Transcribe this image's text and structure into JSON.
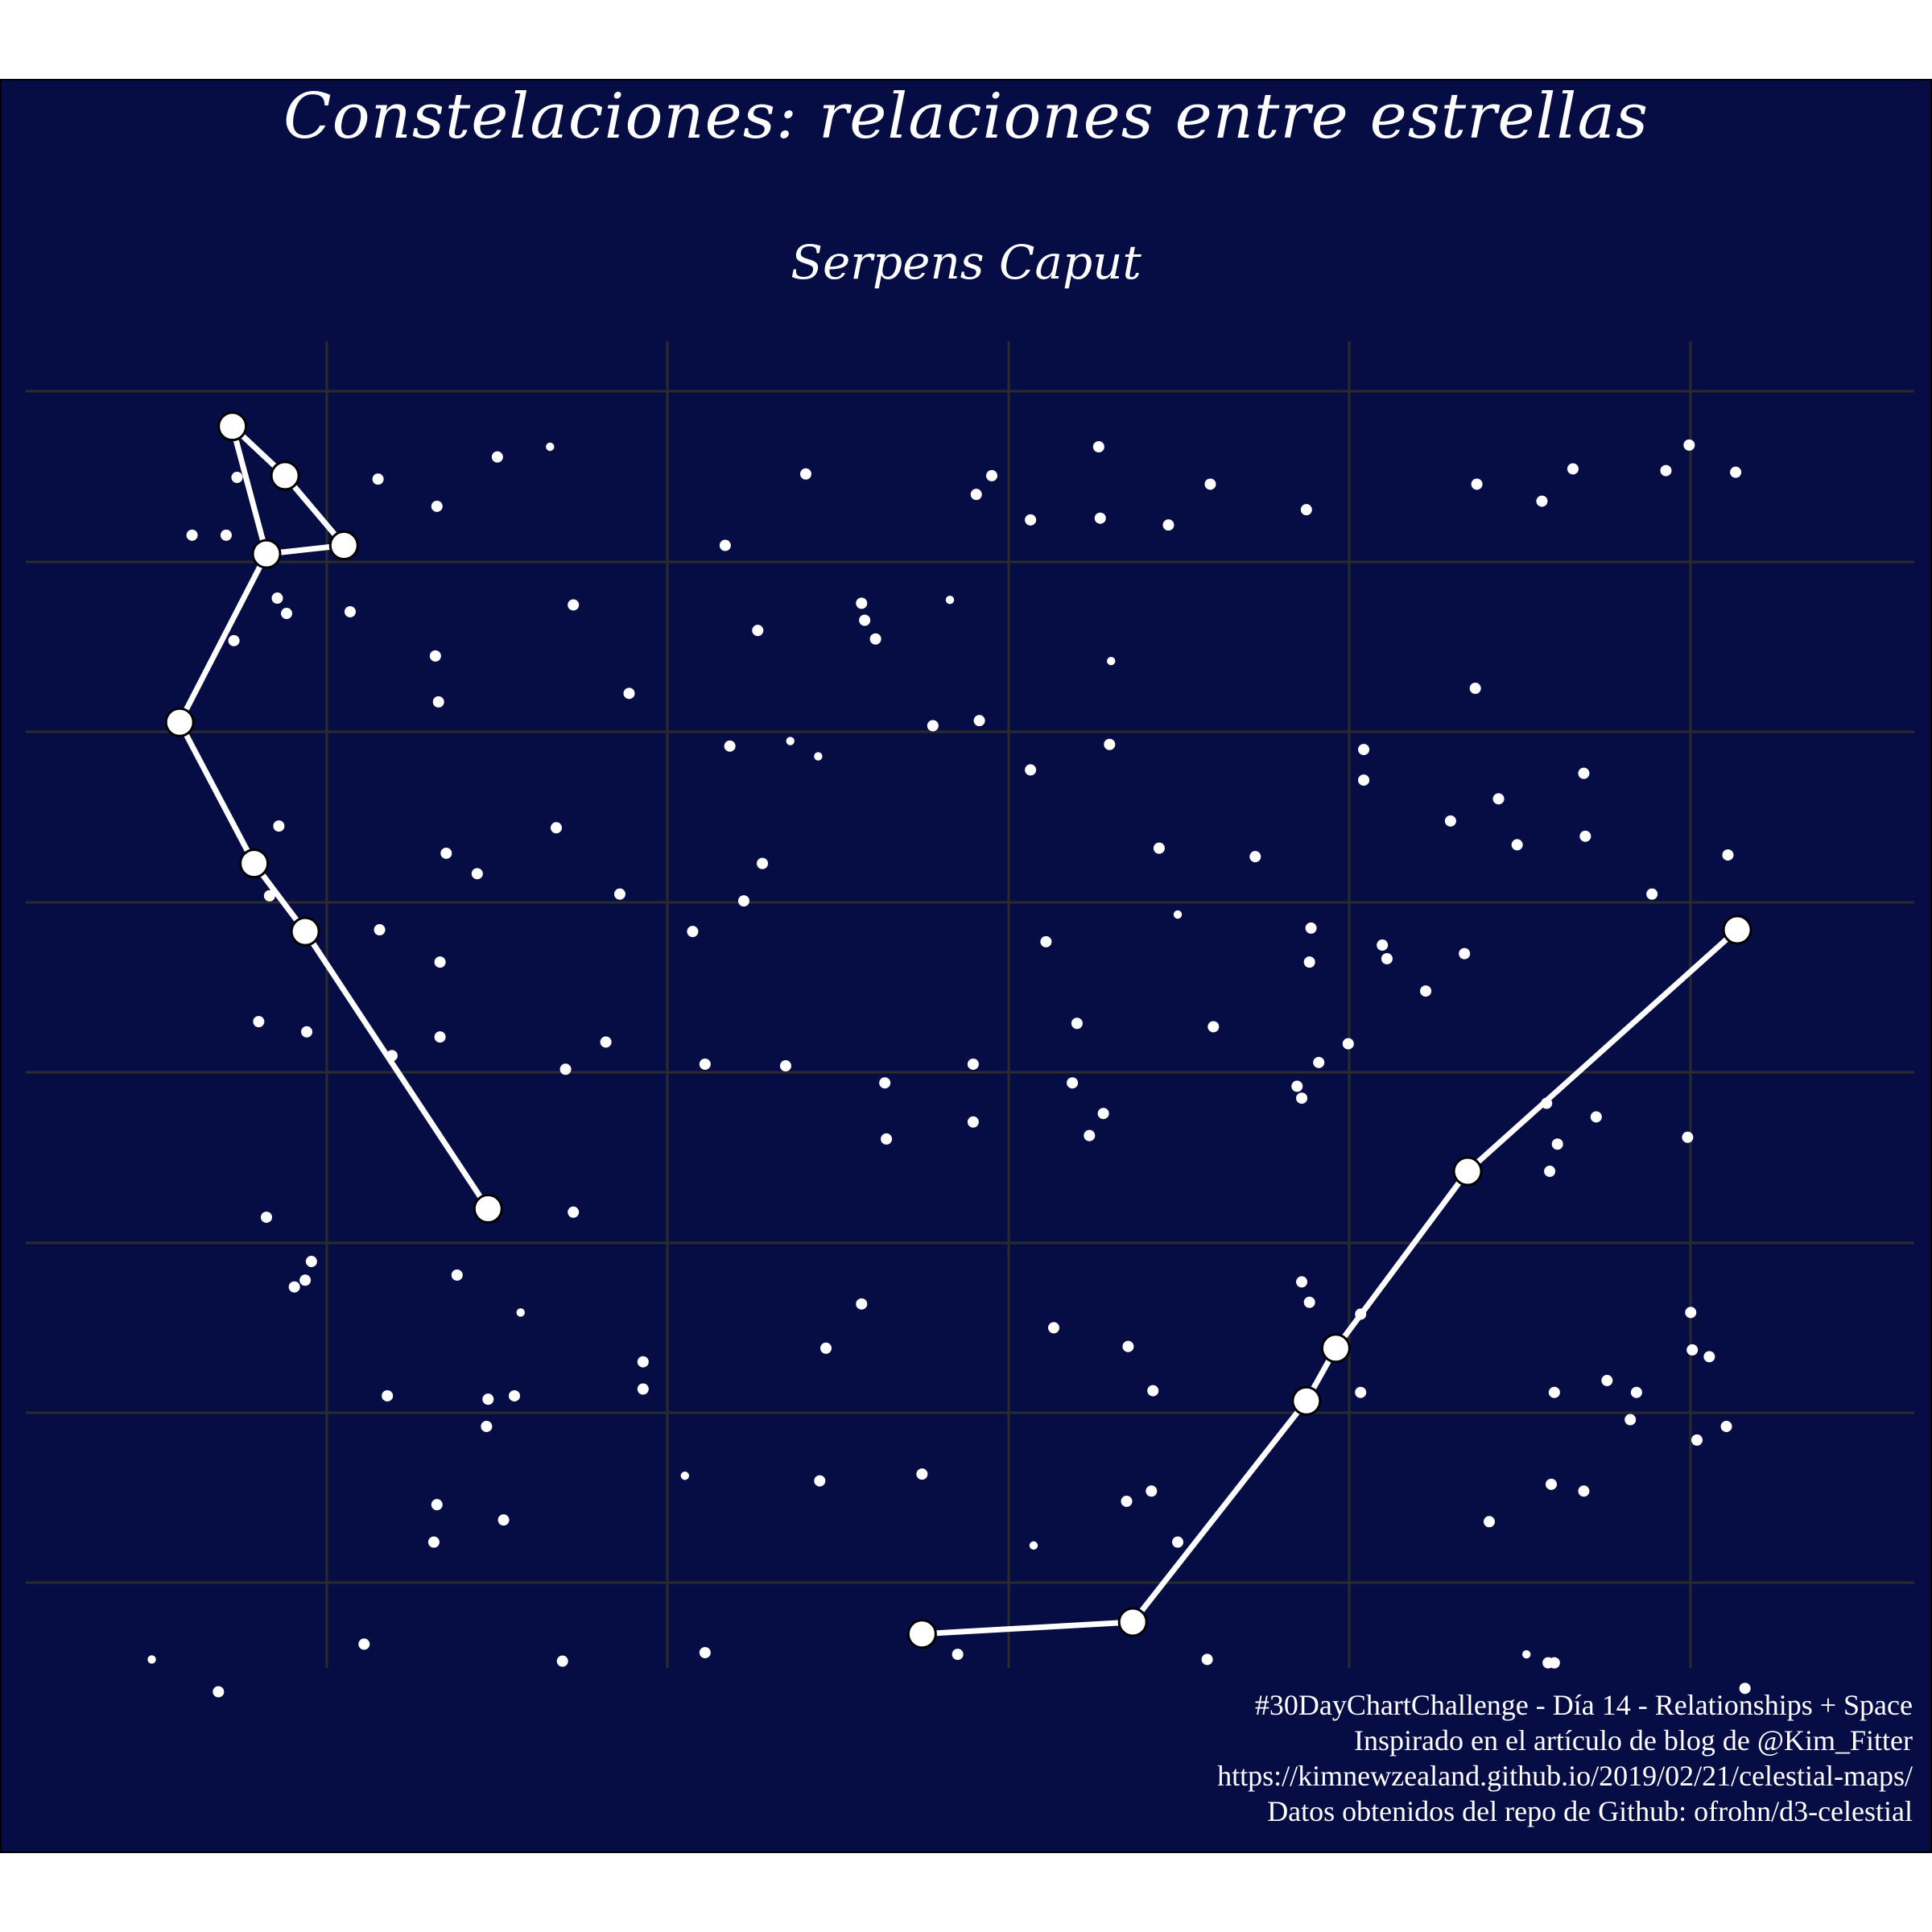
{
  "title": "Constelaciones: relaciones entre estrellas",
  "subtitle": "Serpens Caput",
  "caption": [
    "#30DayChartChallenge - Día 14 - Relationships + Space",
    "Inspirado en el artículo de blog de @Kim_Fitter",
    "https://kimnewzealand.github.io/2019/02/21/celestial-maps/",
    "Datos obtenidos del repo de Github: ofrohn/d3-celestial"
  ],
  "colors": {
    "background": "#060d44",
    "grid": "#2b2b2b",
    "stars": "#ffffff",
    "constellation_line": "#ffffff",
    "node_outline": "#000000"
  },
  "chart_data": {
    "type": "scatter",
    "grid": true,
    "axes_labels_shown": false,
    "xlim": [
      0,
      11.1
    ],
    "ylim": [
      0,
      7.8
    ],
    "constellation_segments": [
      [
        [
          0.85,
          7.3
        ],
        [
          1.19,
          7.01
        ],
        [
          1.57,
          6.6
        ],
        [
          1.07,
          6.55
        ],
        [
          0.85,
          7.3
        ]
      ],
      [
        [
          1.07,
          6.55
        ],
        [
          0.51,
          5.56
        ],
        [
          0.99,
          4.73
        ],
        [
          1.32,
          4.33
        ],
        [
          2.5,
          2.7
        ]
      ],
      [
        [
          5.3,
          0.2
        ],
        [
          6.66,
          0.27
        ],
        [
          7.78,
          1.57
        ],
        [
          7.97,
          1.88
        ],
        [
          8.82,
          2.92
        ],
        [
          10.56,
          4.34
        ]
      ]
    ],
    "background_stars": [
      [
        0.88,
        7.0,
        0.8
      ],
      [
        0.59,
        6.66,
        0.8
      ],
      [
        0.81,
        6.66,
        0.8
      ],
      [
        1.14,
        6.29,
        0.8
      ],
      [
        1.2,
        6.2,
        0.8
      ],
      [
        0.86,
        6.04,
        0.8
      ],
      [
        1.61,
        6.21,
        0.8
      ],
      [
        1.79,
        6.99,
        0.8
      ],
      [
        2.17,
        6.83,
        0.8
      ],
      [
        2.56,
        7.12,
        0.8
      ],
      [
        2.9,
        7.18,
        0.7
      ],
      [
        3.05,
        6.25,
        0.8
      ],
      [
        3.41,
        5.73,
        0.8
      ],
      [
        4.03,
        6.6,
        0.8
      ],
      [
        4.24,
        6.1,
        0.8
      ],
      [
        4.55,
        7.02,
        0.8
      ],
      [
        4.91,
        6.26,
        0.8
      ],
      [
        4.93,
        6.16,
        0.8
      ],
      [
        5.0,
        6.05,
        0.8
      ],
      [
        5.48,
        6.28,
        0.6
      ],
      [
        5.65,
        6.9,
        0.8
      ],
      [
        5.75,
        7.01,
        0.8
      ],
      [
        6.0,
        6.75,
        0.8
      ],
      [
        6.44,
        7.18,
        0.8
      ],
      [
        6.45,
        6.76,
        0.8
      ],
      [
        6.52,
        5.92,
        0.6
      ],
      [
        6.89,
        6.72,
        0.8
      ],
      [
        7.16,
        6.96,
        0.8
      ],
      [
        7.78,
        6.81,
        0.8
      ],
      [
        8.88,
        6.96,
        0.8
      ],
      [
        9.3,
        6.86,
        0.8
      ],
      [
        9.5,
        7.05,
        0.8
      ],
      [
        10.1,
        7.04,
        0.8
      ],
      [
        10.25,
        7.19,
        0.8
      ],
      [
        10.55,
        7.03,
        0.8
      ],
      [
        8.87,
        5.76,
        0.8
      ],
      [
        2.16,
        5.95,
        0.8
      ],
      [
        2.18,
        5.68,
        0.8
      ],
      [
        4.45,
        5.45,
        0.7
      ],
      [
        4.63,
        5.36,
        0.6
      ],
      [
        4.06,
        5.42,
        0.8
      ],
      [
        5.37,
        5.54,
        0.8
      ],
      [
        5.67,
        5.57,
        0.8
      ],
      [
        6.0,
        5.28,
        0.8
      ],
      [
        6.51,
        5.43,
        0.8
      ],
      [
        8.15,
        5.4,
        0.8
      ],
      [
        8.15,
        5.22,
        0.8
      ],
      [
        9.02,
        5.11,
        0.8
      ],
      [
        9.57,
        5.26,
        0.8
      ],
      [
        8.71,
        4.98,
        0.8
      ],
      [
        9.14,
        4.84,
        0.8
      ],
      [
        9.58,
        4.89,
        0.8
      ],
      [
        1.15,
        4.95,
        0.8
      ],
      [
        1.09,
        4.54,
        0.8
      ],
      [
        2.23,
        4.79,
        0.8
      ],
      [
        2.43,
        4.67,
        0.8
      ],
      [
        2.94,
        4.94,
        0.8
      ],
      [
        3.35,
        4.55,
        0.8
      ],
      [
        4.27,
        4.73,
        0.8
      ],
      [
        4.15,
        4.51,
        0.8
      ],
      [
        6.83,
        4.82,
        0.8
      ],
      [
        7.45,
        4.77,
        0.8
      ],
      [
        6.95,
        4.43,
        0.7
      ],
      [
        10.01,
        4.55,
        0.8
      ],
      [
        10.5,
        4.78,
        0.8
      ],
      [
        1.8,
        4.34,
        0.8
      ],
      [
        2.19,
        4.15,
        0.8
      ],
      [
        3.82,
        4.33,
        0.8
      ],
      [
        6.1,
        4.27,
        0.8
      ],
      [
        7.81,
        4.35,
        0.8
      ],
      [
        8.27,
        4.25,
        0.8
      ],
      [
        8.3,
        4.17,
        0.8
      ],
      [
        8.8,
        4.2,
        0.8
      ],
      [
        7.8,
        4.15,
        0.8
      ],
      [
        1.02,
        3.8,
        0.8
      ],
      [
        1.33,
        3.74,
        0.8
      ],
      [
        1.88,
        3.6,
        0.8
      ],
      [
        3.26,
        3.68,
        0.8
      ],
      [
        3.0,
        3.52,
        0.8
      ],
      [
        3.9,
        3.55,
        0.8
      ],
      [
        4.42,
        3.54,
        0.8
      ],
      [
        5.06,
        3.44,
        0.8
      ],
      [
        5.63,
        3.55,
        0.8
      ],
      [
        6.3,
        3.79,
        0.8
      ],
      [
        7.18,
        3.77,
        0.8
      ],
      [
        8.05,
        3.67,
        0.8
      ],
      [
        8.55,
        3.98,
        0.8
      ],
      [
        7.86,
        3.56,
        0.8
      ],
      [
        2.19,
        3.71,
        0.8
      ],
      [
        6.27,
        3.44,
        0.8
      ],
      [
        6.38,
        3.13,
        0.8
      ],
      [
        5.07,
        3.11,
        0.8
      ],
      [
        6.47,
        3.26,
        0.8
      ],
      [
        5.63,
        3.21,
        0.8
      ],
      [
        7.72,
        3.42,
        0.8
      ],
      [
        7.75,
        3.35,
        0.8
      ],
      [
        9.33,
        3.32,
        0.8
      ],
      [
        9.65,
        3.24,
        0.8
      ],
      [
        10.24,
        3.12,
        0.8
      ],
      [
        9.4,
        3.08,
        0.8
      ],
      [
        1.07,
        2.65,
        0.8
      ],
      [
        1.36,
        2.39,
        0.8
      ],
      [
        1.32,
        2.28,
        0.8
      ],
      [
        1.25,
        2.24,
        0.8
      ],
      [
        2.3,
        2.31,
        0.8
      ],
      [
        3.05,
        2.68,
        0.8
      ],
      [
        2.71,
        2.09,
        0.7
      ],
      [
        4.91,
        2.14,
        0.8
      ],
      [
        7.8,
        2.15,
        0.8
      ],
      [
        7.75,
        2.27,
        0.8
      ],
      [
        8.13,
        2.08,
        0.8
      ],
      [
        9.35,
        2.92,
        0.8
      ],
      [
        10.26,
        2.09,
        0.8
      ],
      [
        6.15,
        2.0,
        0.8
      ],
      [
        6.63,
        1.89,
        0.8
      ],
      [
        4.68,
        1.88,
        0.8
      ],
      [
        10.27,
        1.87,
        0.8
      ],
      [
        10.38,
        1.83,
        0.8
      ],
      [
        1.85,
        1.6,
        0.8
      ],
      [
        2.67,
        1.6,
        0.8
      ],
      [
        2.5,
        1.58,
        0.8
      ],
      [
        3.5,
        1.64,
        0.8
      ],
      [
        3.5,
        1.8,
        0.8
      ],
      [
        6.79,
        1.63,
        0.8
      ],
      [
        8.13,
        1.62,
        0.8
      ],
      [
        9.38,
        1.62,
        0.8
      ],
      [
        9.72,
        1.69,
        0.8
      ],
      [
        9.91,
        1.62,
        0.8
      ],
      [
        9.87,
        1.46,
        0.8
      ],
      [
        10.3,
        1.34,
        0.8
      ],
      [
        10.49,
        1.42,
        0.8
      ],
      [
        2.49,
        1.42,
        0.8
      ],
      [
        3.77,
        1.13,
        0.7
      ],
      [
        4.64,
        1.1,
        0.8
      ],
      [
        5.3,
        1.14,
        0.8
      ],
      [
        6.78,
        1.04,
        0.8
      ],
      [
        6.62,
        0.98,
        0.8
      ],
      [
        9.36,
        1.08,
        0.8
      ],
      [
        9.57,
        1.04,
        0.8
      ],
      [
        2.17,
        0.96,
        0.8
      ],
      [
        2.6,
        0.87,
        0.8
      ],
      [
        2.15,
        0.74,
        0.8
      ],
      [
        6.02,
        0.72,
        0.7
      ],
      [
        6.95,
        0.74,
        0.8
      ],
      [
        8.96,
        0.86,
        0.8
      ],
      [
        1.7,
        0.14,
        0.8
      ],
      [
        2.98,
        0.04,
        0.8
      ],
      [
        3.9,
        0.09,
        0.8
      ],
      [
        5.53,
        0.08,
        0.8
      ],
      [
        7.14,
        0.05,
        0.8
      ],
      [
        0.33,
        0.05,
        0.7
      ],
      [
        0.76,
        -0.14,
        0.8
      ],
      [
        9.2,
        0.08,
        0.7
      ],
      [
        9.34,
        0.03,
        0.8
      ],
      [
        9.38,
        0.03,
        0.8
      ],
      [
        10.61,
        -0.12,
        0.8
      ]
    ]
  }
}
